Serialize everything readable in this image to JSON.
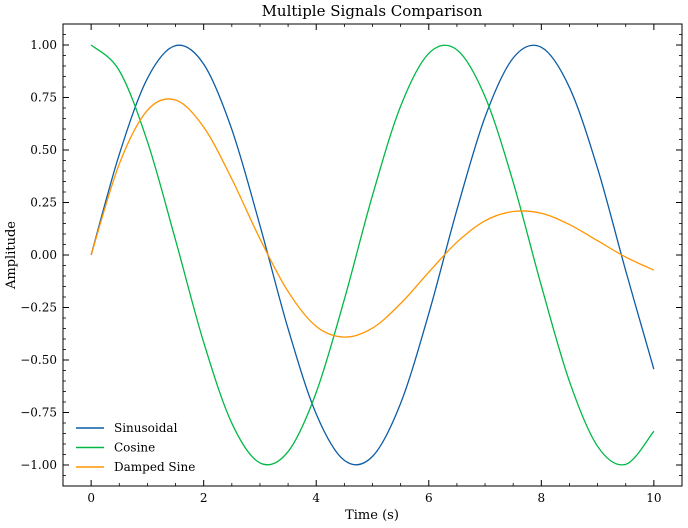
{
  "chart_data": {
    "type": "line",
    "title": "Multiple Signals Comparison",
    "xlabel": "Time (s)",
    "ylabel": "Amplitude",
    "xlim": [
      -0.5,
      10.5
    ],
    "ylim": [
      -1.1,
      1.1
    ],
    "x_ticks": [
      0,
      2,
      4,
      6,
      8,
      10
    ],
    "x_tick_labels": [
      "0",
      "2",
      "4",
      "6",
      "8",
      "10"
    ],
    "y_ticks": [
      -1.0,
      -0.75,
      -0.5,
      -0.25,
      0.0,
      0.25,
      0.5,
      0.75,
      1.0
    ],
    "y_tick_labels": [
      "−1.00",
      "−0.75",
      "−0.50",
      "−0.25",
      "0.00",
      "0.25",
      "0.50",
      "0.75",
      "1.00"
    ],
    "grid": false,
    "legend_position": "lower-left",
    "x": [
      0,
      0.5,
      1,
      1.5,
      2,
      2.5,
      3,
      3.5,
      4,
      4.5,
      5,
      5.5,
      6,
      6.5,
      7,
      7.5,
      8,
      8.5,
      9,
      9.5,
      10
    ],
    "series": [
      {
        "name": "Sinusoidal",
        "color": "#0c5da5",
        "values": [
          0.0,
          0.479,
          0.841,
          0.997,
          0.909,
          0.598,
          0.141,
          -0.351,
          -0.757,
          -0.978,
          -0.959,
          -0.706,
          -0.279,
          0.215,
          0.657,
          0.938,
          0.989,
          0.798,
          0.412,
          -0.075,
          -0.544
        ]
      },
      {
        "name": "Cosine",
        "color": "#00b945",
        "values": [
          1.0,
          0.878,
          0.54,
          0.071,
          -0.416,
          -0.801,
          -0.99,
          -0.936,
          -0.654,
          -0.211,
          0.284,
          0.709,
          0.96,
          0.977,
          0.754,
          0.347,
          -0.146,
          -0.602,
          -0.911,
          -0.997,
          -0.839
        ]
      },
      {
        "name": "Damped Sine",
        "color": "#ff9500",
        "values": [
          0.0,
          0.433,
          0.689,
          0.738,
          0.609,
          0.362,
          0.077,
          -0.174,
          -0.34,
          -0.391,
          -0.348,
          -0.231,
          -0.082,
          0.061,
          0.163,
          0.207,
          0.199,
          0.145,
          0.068,
          -0.01,
          -0.072
        ]
      }
    ]
  }
}
